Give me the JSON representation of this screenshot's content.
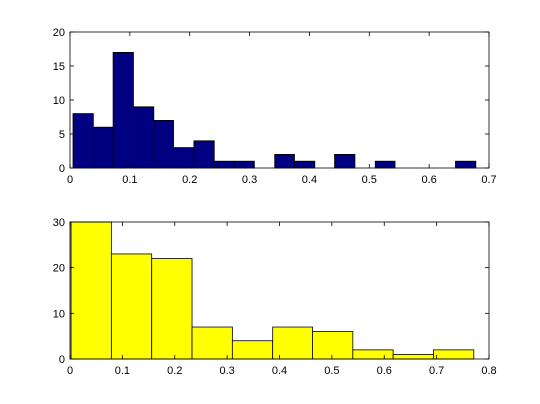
{
  "chart_data": [
    {
      "type": "histogram",
      "color": "#000080",
      "bins": [
        0.005,
        0.039,
        0.072,
        0.106,
        0.14,
        0.173,
        0.207,
        0.241,
        0.274,
        0.308,
        0.342,
        0.375,
        0.409,
        0.442,
        0.476,
        0.51,
        0.543,
        0.577,
        0.611,
        0.644,
        0.678
      ],
      "values": [
        8,
        6,
        17,
        9,
        7,
        3,
        4,
        1,
        1,
        0,
        2,
        1,
        0,
        2,
        0,
        1,
        0,
        0,
        0,
        1
      ],
      "xlim": [
        0,
        0.7
      ],
      "xticks": [
        0,
        0.1,
        0.2,
        0.3,
        0.4,
        0.5,
        0.6,
        0.7
      ],
      "ylim": [
        0,
        20
      ],
      "yticks": [
        0,
        5,
        10,
        15,
        20
      ]
    },
    {
      "type": "histogram",
      "color": "#ffff00",
      "bins": [
        0.002,
        0.079,
        0.156,
        0.233,
        0.31,
        0.387,
        0.463,
        0.54,
        0.617,
        0.694,
        0.771
      ],
      "values": [
        30,
        23,
        22,
        7,
        4,
        7,
        6,
        2,
        1,
        2
      ],
      "xlim": [
        0,
        0.8
      ],
      "xticks": [
        0,
        0.1,
        0.2,
        0.3,
        0.4,
        0.5,
        0.6,
        0.7,
        0.8
      ],
      "ylim": [
        0,
        30
      ],
      "yticks": [
        0,
        10,
        20,
        30
      ]
    }
  ]
}
